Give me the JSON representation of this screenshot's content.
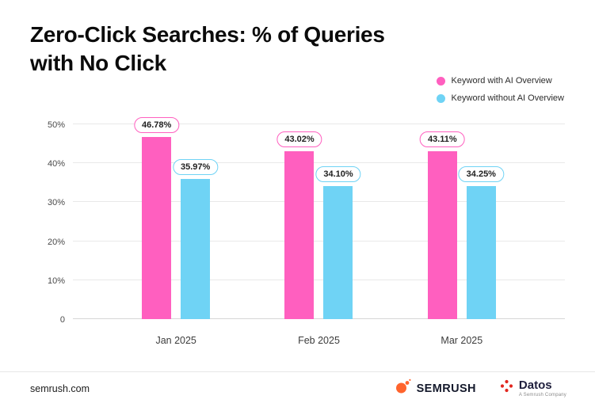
{
  "header": {
    "title_line1": "Zero-Click Searches: % of Queries",
    "title_line2": "with No Click"
  },
  "legend": {
    "items": [
      {
        "label": "Keyword with AI Overview",
        "color": "#FF5FBF"
      },
      {
        "label": "Keyword without AI Overview",
        "color": "#6FD3F5"
      }
    ]
  },
  "chart_data": {
    "type": "bar",
    "title": "Zero-Click Searches: % of Queries with No Click",
    "categories": [
      "Jan 2025",
      "Feb 2025",
      "Mar 2025"
    ],
    "series": [
      {
        "name": "Keyword with AI Overview",
        "color": "#FF5FBF",
        "values": [
          46.78,
          43.02,
          43.11
        ],
        "labels": [
          "46.78%",
          "43.02%",
          "43.11%"
        ]
      },
      {
        "name": "Keyword without AI Overview",
        "color": "#6FD3F5",
        "values": [
          35.97,
          34.1,
          34.25
        ],
        "labels": [
          "35.97%",
          "34.10%",
          "34.25%"
        ]
      }
    ],
    "xlabel": "",
    "ylabel": "",
    "ylim": [
      0,
      50
    ],
    "yticks": [
      "0",
      "10%",
      "20%",
      "30%",
      "40%",
      "50%"
    ],
    "grid": true,
    "legend_position": "top-right"
  },
  "footer": {
    "site": "semrush.com",
    "semrush_wordmark": "SEMRUSH",
    "datos_wordmark": "Datos",
    "datos_tagline": "A Semrush Company"
  },
  "colors": {
    "background": "#FFFFFF",
    "gridline": "#E9E9E9",
    "pink": "#FF5FBF",
    "blue": "#6FD3F5",
    "semrush_orange": "#FF642D",
    "datos_red": "#E2261F"
  }
}
